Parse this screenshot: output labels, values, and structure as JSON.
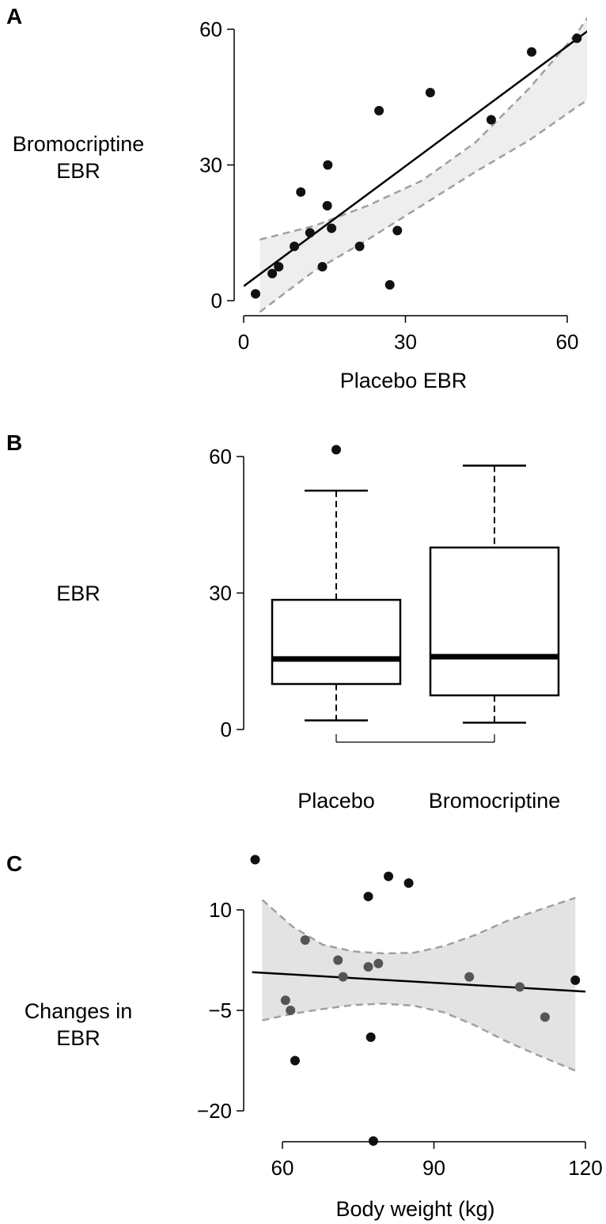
{
  "chart_data": [
    {
      "panel": "A",
      "type": "scatter",
      "xlabel": "Placebo EBR",
      "ylabel_lines": [
        "Bromocriptine",
        "EBR"
      ],
      "xlim": [
        0,
        62
      ],
      "ylim": [
        0,
        60
      ],
      "xticks": [
        "0",
        "30",
        "60"
      ],
      "yticks": [
        "0",
        "30",
        "60"
      ],
      "points": [
        {
          "x": 2.2,
          "y": 1.5
        },
        {
          "x": 5.3,
          "y": 6
        },
        {
          "x": 6.5,
          "y": 7.5
        },
        {
          "x": 9.4,
          "y": 12
        },
        {
          "x": 10.6,
          "y": 24
        },
        {
          "x": 12.3,
          "y": 15
        },
        {
          "x": 14.6,
          "y": 7.5
        },
        {
          "x": 15.5,
          "y": 21
        },
        {
          "x": 15.6,
          "y": 30
        },
        {
          "x": 16.3,
          "y": 16
        },
        {
          "x": 21.5,
          "y": 12
        },
        {
          "x": 25.1,
          "y": 42
        },
        {
          "x": 27.1,
          "y": 3.5
        },
        {
          "x": 28.5,
          "y": 15.5
        },
        {
          "x": 34.6,
          "y": 46
        },
        {
          "x": 45.9,
          "y": 40
        },
        {
          "x": 53.4,
          "y": 55
        },
        {
          "x": 61.8,
          "y": 58
        }
      ],
      "fit_line": {
        "x": [
          0,
          64
        ],
        "y": [
          3.2,
          59.8
        ]
      },
      "band_x": [
        3,
        13,
        23,
        33,
        43,
        53,
        62,
        64
      ],
      "band_upper": [
        13.5,
        16.5,
        21,
        26.5,
        35,
        47,
        59.5,
        63
      ],
      "band_lower": [
        -2.5,
        6.5,
        13.5,
        21,
        28.5,
        35.5,
        43,
        44.5
      ]
    },
    {
      "panel": "B",
      "type": "box",
      "ylabel": "EBR",
      "ylim": [
        0,
        60
      ],
      "yticks": [
        "0",
        "30",
        "60"
      ],
      "categories": [
        "Placebo",
        "Bromocriptine"
      ],
      "boxes": [
        {
          "name": "Placebo",
          "whisker_low": 2,
          "q1": 10,
          "median": 15.5,
          "q3": 28.5,
          "whisker_high": 52.5,
          "outliers": [
            61.5
          ]
        },
        {
          "name": "Bromocriptine",
          "whisker_low": 1.5,
          "q1": 7.5,
          "median": 16,
          "q3": 40,
          "whisker_high": 58,
          "outliers": []
        }
      ]
    },
    {
      "panel": "C",
      "type": "scatter",
      "xlabel": "Body weight (kg)",
      "ylabel_lines": [
        "Changes in",
        "EBR"
      ],
      "xlim": [
        54,
        120
      ],
      "ylim": [
        -20,
        10
      ],
      "xticks": [
        "60",
        "90",
        "120"
      ],
      "yticks": [
        "−20",
        "−5",
        "10"
      ],
      "points": [
        {
          "x": 54.6,
          "y": 17.5,
          "c": "#111111"
        },
        {
          "x": 62.5,
          "y": -12.5,
          "c": "#111111"
        },
        {
          "x": 64.5,
          "y": 5.5,
          "c": "#555555"
        },
        {
          "x": 60.6,
          "y": -3.5,
          "c": "#555555"
        },
        {
          "x": 61.6,
          "y": -5,
          "c": "#555555"
        },
        {
          "x": 71,
          "y": 2.5,
          "c": "#555555"
        },
        {
          "x": 72,
          "y": 0,
          "c": "#555555"
        },
        {
          "x": 77,
          "y": 1.5,
          "c": "#555555"
        },
        {
          "x": 77.5,
          "y": -9,
          "c": "#111111"
        },
        {
          "x": 78,
          "y": -24.5,
          "c": "#111111"
        },
        {
          "x": 79,
          "y": 2,
          "c": "#555555"
        },
        {
          "x": 77,
          "y": 12,
          "c": "#111111"
        },
        {
          "x": 81,
          "y": 15,
          "c": "#111111"
        },
        {
          "x": 85,
          "y": 14,
          "c": "#111111"
        },
        {
          "x": 97,
          "y": 0,
          "c": "#555555"
        },
        {
          "x": 107,
          "y": -1.5,
          "c": "#555555"
        },
        {
          "x": 112,
          "y": -6,
          "c": "#555555"
        },
        {
          "x": 118,
          "y": -0.5,
          "c": "#111111"
        }
      ],
      "fit_line": {
        "x": [
          54,
          120
        ],
        "y": [
          0.7,
          -2.2
        ]
      },
      "band_x": [
        56,
        62,
        68,
        74,
        80,
        86,
        92,
        98,
        104,
        110,
        118
      ],
      "band_upper": [
        11.5,
        7.5,
        4.8,
        3.8,
        3.5,
        3.6,
        4.6,
        6.2,
        8.2,
        9.8,
        11.8
      ],
      "band_lower": [
        -6.5,
        -5.5,
        -4.8,
        -4.2,
        -4,
        -4.3,
        -5.3,
        -7.2,
        -9.5,
        -11.5,
        -14
      ]
    }
  ]
}
